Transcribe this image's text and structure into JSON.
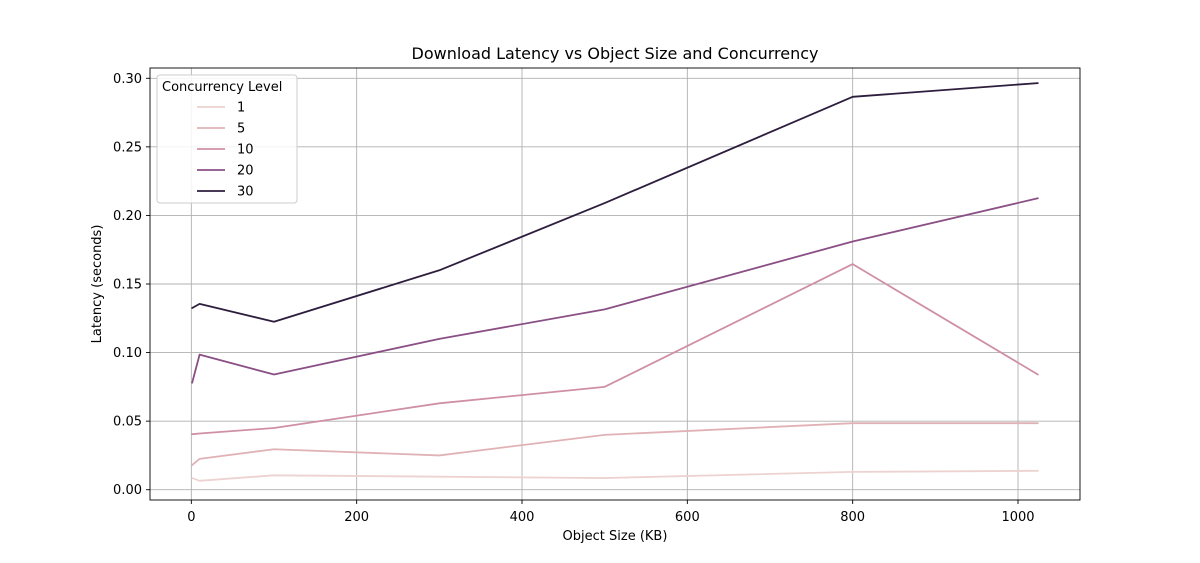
{
  "chart_data": {
    "type": "line",
    "title": "Download Latency vs Object Size and Concurrency",
    "xlabel": "Object Size (KB)",
    "ylabel": "Latency (seconds)",
    "x": [
      1,
      10,
      100,
      300,
      500,
      800,
      1024
    ],
    "xlim": [
      -50,
      1075
    ],
    "ylim": [
      -0.0075,
      0.3075
    ],
    "xticks": [
      0,
      200,
      400,
      600,
      800,
      1000
    ],
    "xtick_labels": [
      "0",
      "200",
      "400",
      "600",
      "800",
      "1000"
    ],
    "yticks": [
      0.0,
      0.05,
      0.1,
      0.15,
      0.2,
      0.25,
      0.3
    ],
    "ytick_labels": [
      "0.00",
      "0.05",
      "0.10",
      "0.15",
      "0.20",
      "0.25",
      "0.30"
    ],
    "grid": true,
    "legend": {
      "title": "Concurrency Level",
      "placement": "top-left"
    },
    "series": [
      {
        "name": "1",
        "color": "#ecd3d1",
        "values": [
          0.0085,
          0.0065,
          0.0105,
          0.0095,
          0.0085,
          0.013,
          0.0138
        ]
      },
      {
        "name": "5",
        "color": "#e0b2b6",
        "values": [
          0.018,
          0.0225,
          0.0295,
          0.025,
          0.04,
          0.0485,
          0.0485
        ]
      },
      {
        "name": "10",
        "color": "#cf8fa5",
        "values": [
          0.0405,
          0.041,
          0.045,
          0.063,
          0.075,
          0.1645,
          0.084
        ]
      },
      {
        "name": "20",
        "color": "#8a4f85",
        "values": [
          0.078,
          0.0985,
          0.084,
          0.11,
          0.1315,
          0.181,
          0.2125
        ]
      },
      {
        "name": "30",
        "color": "#2d1e3e",
        "values": [
          0.1325,
          0.1355,
          0.1225,
          0.16,
          0.209,
          0.2865,
          0.2965
        ]
      }
    ]
  }
}
